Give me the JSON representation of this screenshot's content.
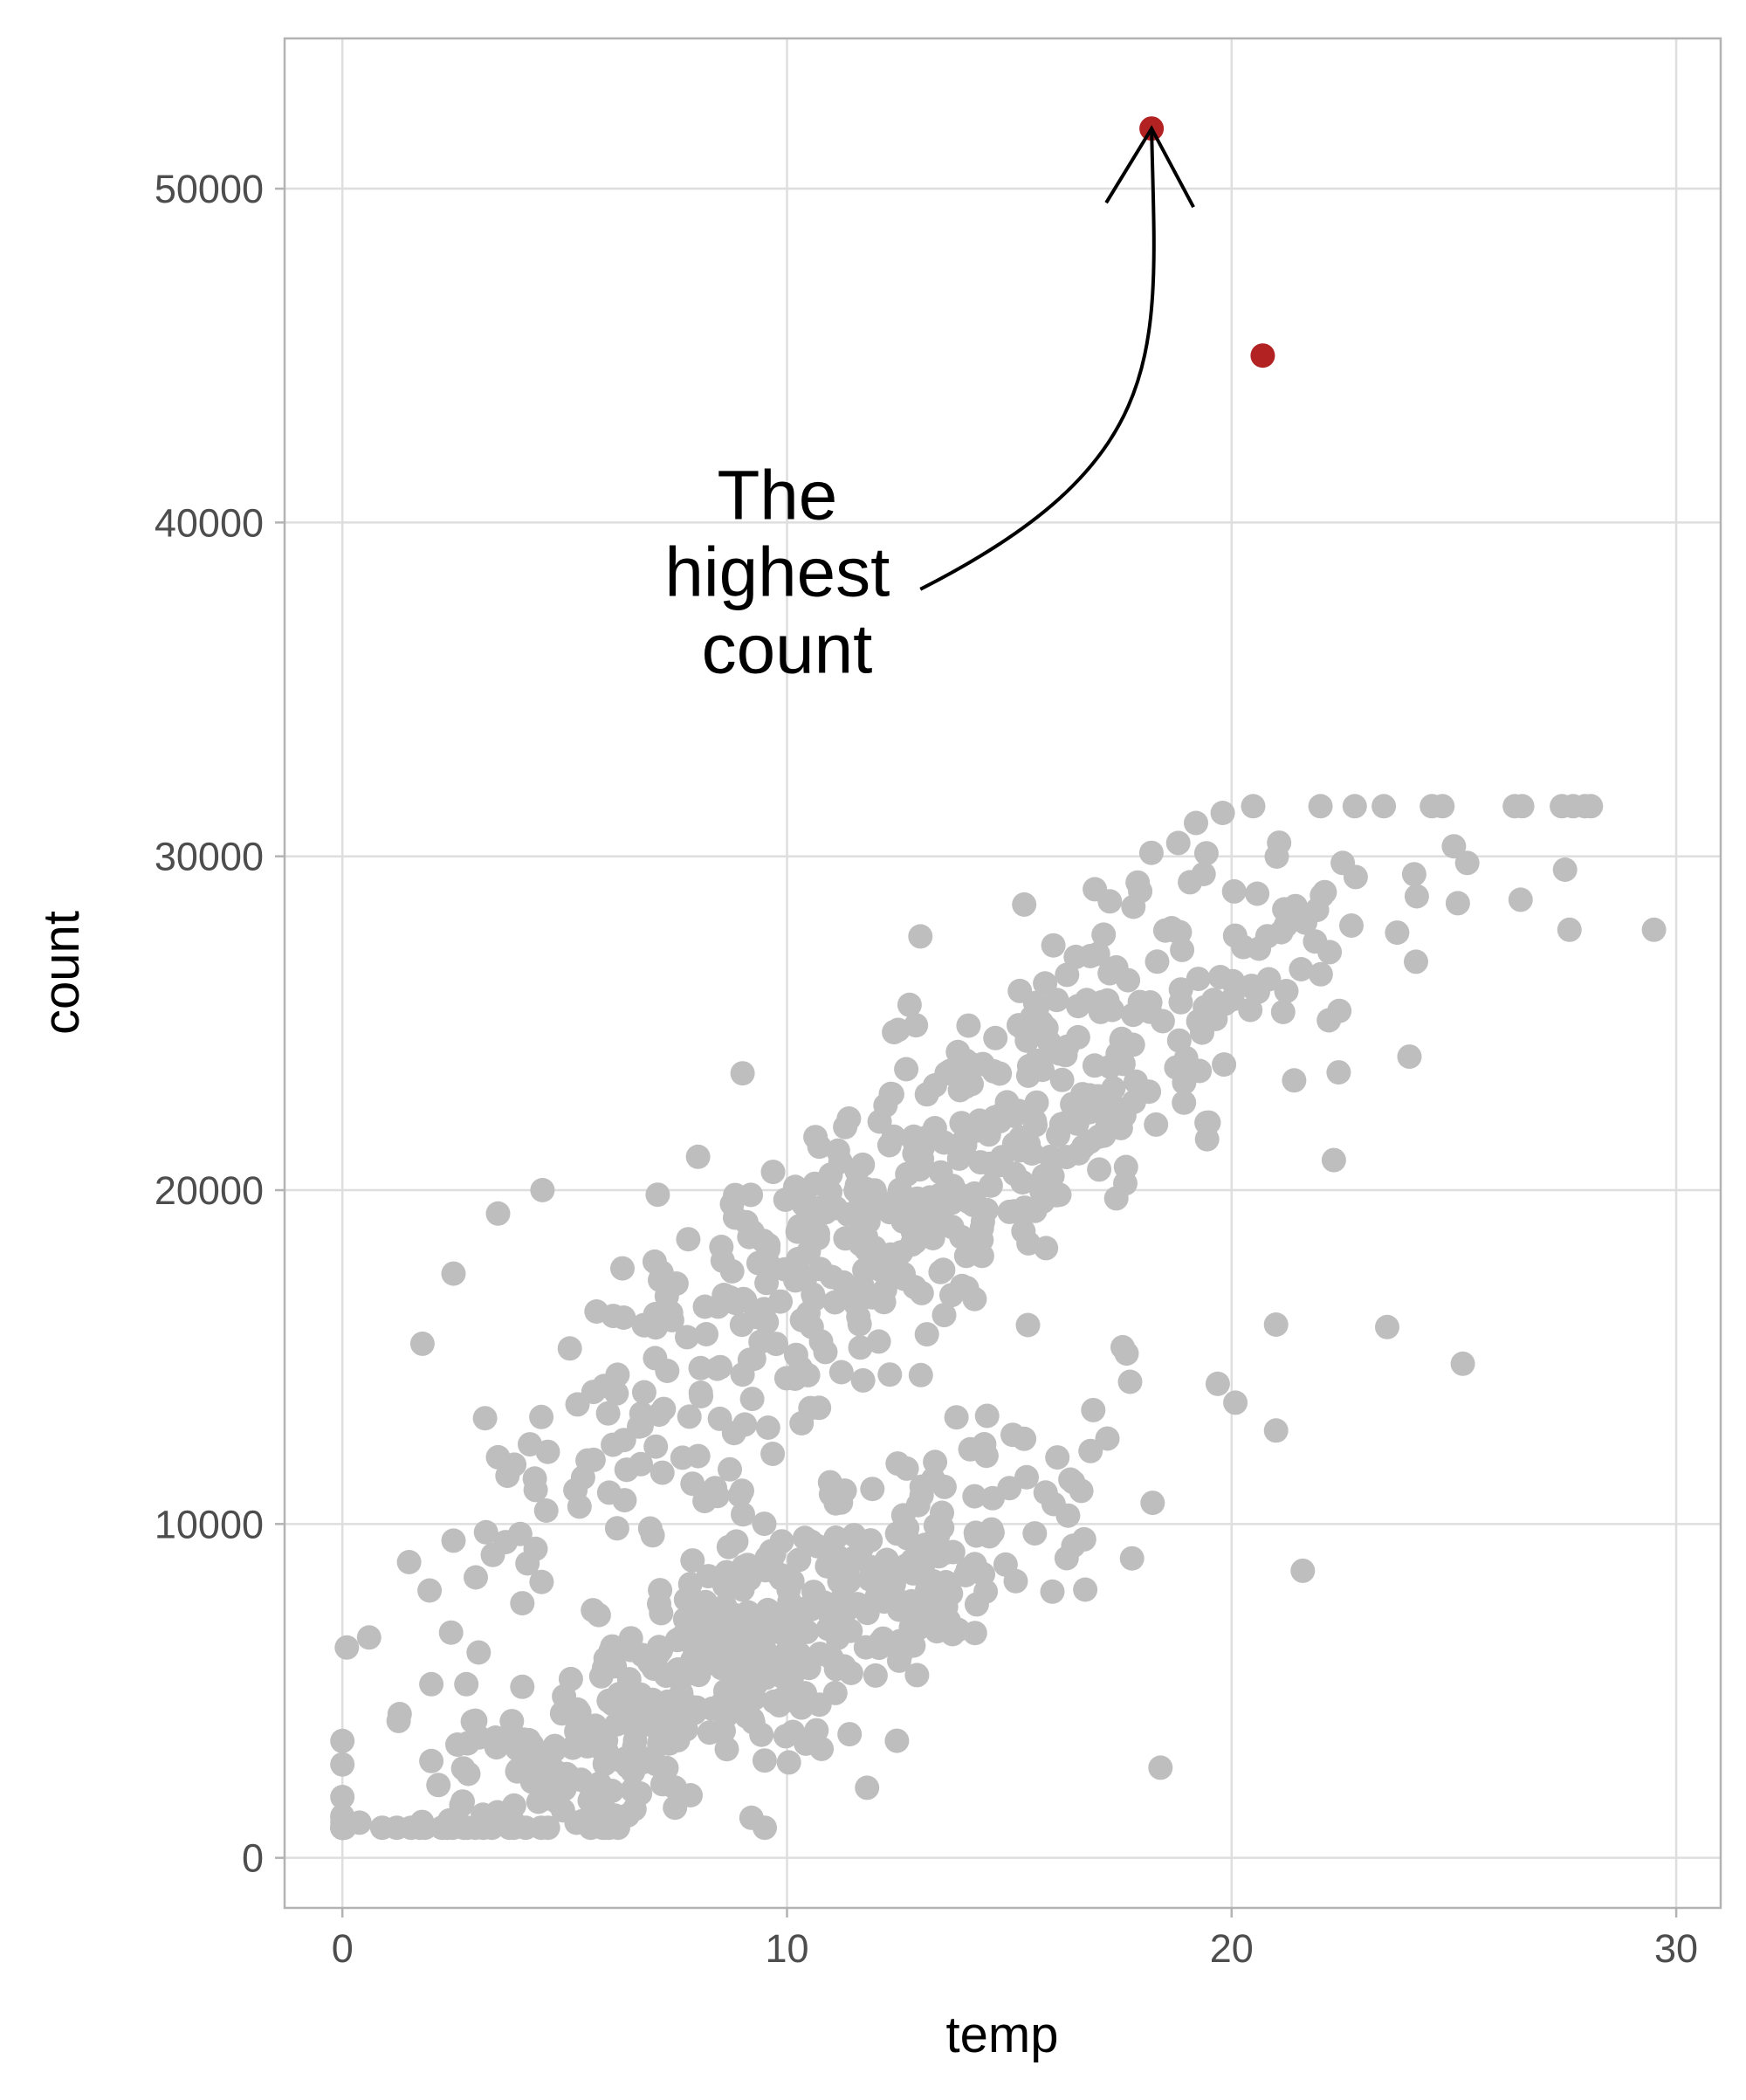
{
  "chart_data": {
    "type": "scatter",
    "title": "",
    "xlabel": "temp",
    "ylabel": "count",
    "xlim": [
      -1.3,
      31.0
    ],
    "ylim": [
      -1500,
      54500
    ],
    "x_ticks": [
      0,
      10,
      20,
      30
    ],
    "x_tick_labels": [
      "0",
      "10",
      "20",
      "30"
    ],
    "y_ticks": [
      0,
      10000,
      20000,
      30000,
      40000,
      50000
    ],
    "y_tick_labels": [
      "0",
      "10000",
      "20000",
      "30000",
      "40000",
      "50000"
    ],
    "grid": true,
    "legend": "none",
    "colors": {
      "background_points": "#bebebe",
      "highlight_points": "#b22222",
      "grid": "#dedede",
      "panel_border": "#b3b3b3",
      "annotation": "#000000"
    },
    "highlighted_points": [
      {
        "x": 18.2,
        "y": 51800
      },
      {
        "x": 20.7,
        "y": 45000
      }
    ],
    "annotation": {
      "lines": [
        "The",
        "highest",
        "count"
      ],
      "text_anchor_data": {
        "x": 10.0,
        "y": 37800
      },
      "arrow_from": {
        "x": 13.0,
        "y": 38000
      },
      "arrow_to": {
        "x": 18.2,
        "y": 51800
      }
    },
    "point_clusters": [
      {
        "name": "",
        "n": 520,
        "x_mean": 9.0,
        "x_sd": 4.2,
        "slope": 700,
        "intercept": -200,
        "y_sd": 1900,
        "x_min": 0.0,
        "x_max": 21.0
      },
      {
        "name": "",
        "n": 520,
        "x_mean": 13.5,
        "x_sd": 5.0,
        "slope": 950,
        "intercept": 7500,
        "y_sd": 2300,
        "x_min": 1.5,
        "x_max": 29.5
      }
    ],
    "outlying_points": [
      {
        "x": 0.1,
        "y": 6300
      },
      {
        "x": 0.6,
        "y": 6600
      },
      {
        "x": 1.8,
        "y": 15400
      },
      {
        "x": 2.0,
        "y": 2900
      },
      {
        "x": 2.5,
        "y": 9500
      },
      {
        "x": 9.5,
        "y": 900
      },
      {
        "x": 9.2,
        "y": 1200
      },
      {
        "x": 11.8,
        "y": 2100
      },
      {
        "x": 18.4,
        "y": 2700
      },
      {
        "x": 21.6,
        "y": 8600
      },
      {
        "x": 25.2,
        "y": 14800
      },
      {
        "x": 23.5,
        "y": 15900
      },
      {
        "x": 29.5,
        "y": 27800
      },
      {
        "x": 27.6,
        "y": 27800
      },
      {
        "x": 26.5,
        "y": 28700
      },
      {
        "x": 27.5,
        "y": 29600
      },
      {
        "x": 22.0,
        "y": 31500
      },
      {
        "x": 19.8,
        "y": 31300
      },
      {
        "x": 19.2,
        "y": 31000
      },
      {
        "x": 18.8,
        "y": 30400
      },
      {
        "x": 13.0,
        "y": 27600
      },
      {
        "x": 9.0,
        "y": 23500
      },
      {
        "x": 4.5,
        "y": 20000
      },
      {
        "x": 3.5,
        "y": 19300
      },
      {
        "x": 2.5,
        "y": 17500
      },
      {
        "x": 3.0,
        "y": 8400
      },
      {
        "x": 25.0,
        "y": 30300
      },
      {
        "x": 25.3,
        "y": 29800
      },
      {
        "x": 22.5,
        "y": 29800
      },
      {
        "x": 22.3,
        "y": 20900
      },
      {
        "x": 24.0,
        "y": 24000
      },
      {
        "x": 12.5,
        "y": 24800
      },
      {
        "x": 8.0,
        "y": 21000
      },
      {
        "x": 4.0,
        "y": 9700
      },
      {
        "x": 3.5,
        "y": 12000
      },
      {
        "x": 2.0,
        "y": 5200
      }
    ]
  }
}
